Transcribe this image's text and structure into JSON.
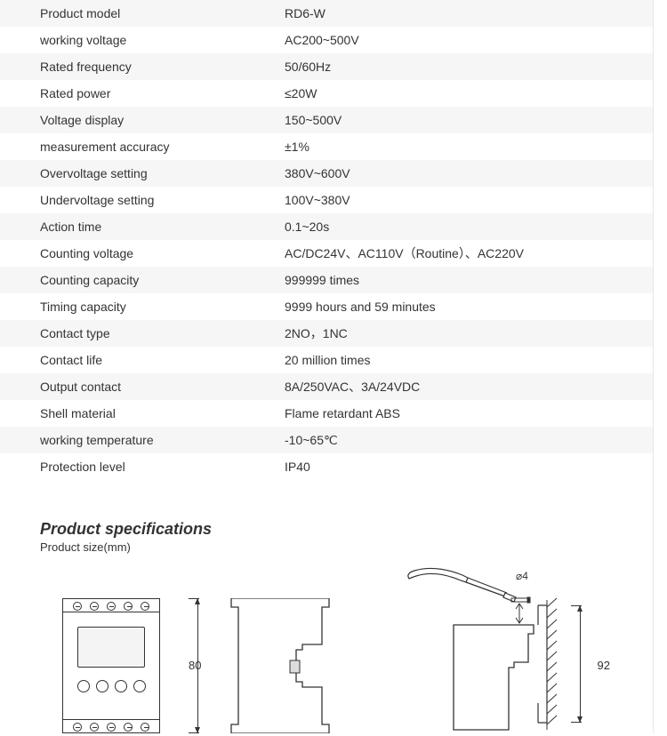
{
  "specs": [
    {
      "label": "Product model",
      "value": "RD6-W"
    },
    {
      "label": "working voltage",
      "value": "AC200~500V"
    },
    {
      "label": "Rated frequency",
      "value": "50/60Hz"
    },
    {
      "label": "Rated power",
      "value": "≤20W"
    },
    {
      "label": "Voltage display",
      "value": "150~500V"
    },
    {
      "label": "measurement accuracy",
      "value": "±1%"
    },
    {
      "label": "Overvoltage setting",
      "value": "380V~600V"
    },
    {
      "label": "Undervoltage setting",
      "value": "100V~380V"
    },
    {
      "label": "Action time",
      "value": "0.1~20s"
    },
    {
      "label": "Counting voltage",
      "value": "AC/DC24V、AC110V（Routine）、AC220V"
    },
    {
      "label": "Counting capacity",
      "value": "999999 times"
    },
    {
      "label": "Timing capacity",
      "value": "9999 hours and 59 minutes"
    },
    {
      "label": "Contact type",
      "value": "2NO，1NC"
    },
    {
      "label": "Contact life",
      "value": "20 million times"
    },
    {
      "label": "Output contact",
      "value": "8A/250VAC、3A/24VDC"
    },
    {
      "label": "Shell material",
      "value": "Flame retardant ABS"
    },
    {
      "label": "working temperature",
      "value": "-10~65℃"
    },
    {
      "label": "Protection level",
      "value": "IP40"
    }
  ],
  "section": {
    "title": "Product specifications",
    "subtitle": "Product size(mm)"
  },
  "dims": {
    "height_front": "80",
    "height_mount": "92",
    "hole": "⌀4"
  },
  "style": {
    "alt_row_bg": "#f6f6f6",
    "text_color": "#333333",
    "border_color": "#333333",
    "font_size_body": 14,
    "font_size_title": 18,
    "font_size_dim": 13
  }
}
